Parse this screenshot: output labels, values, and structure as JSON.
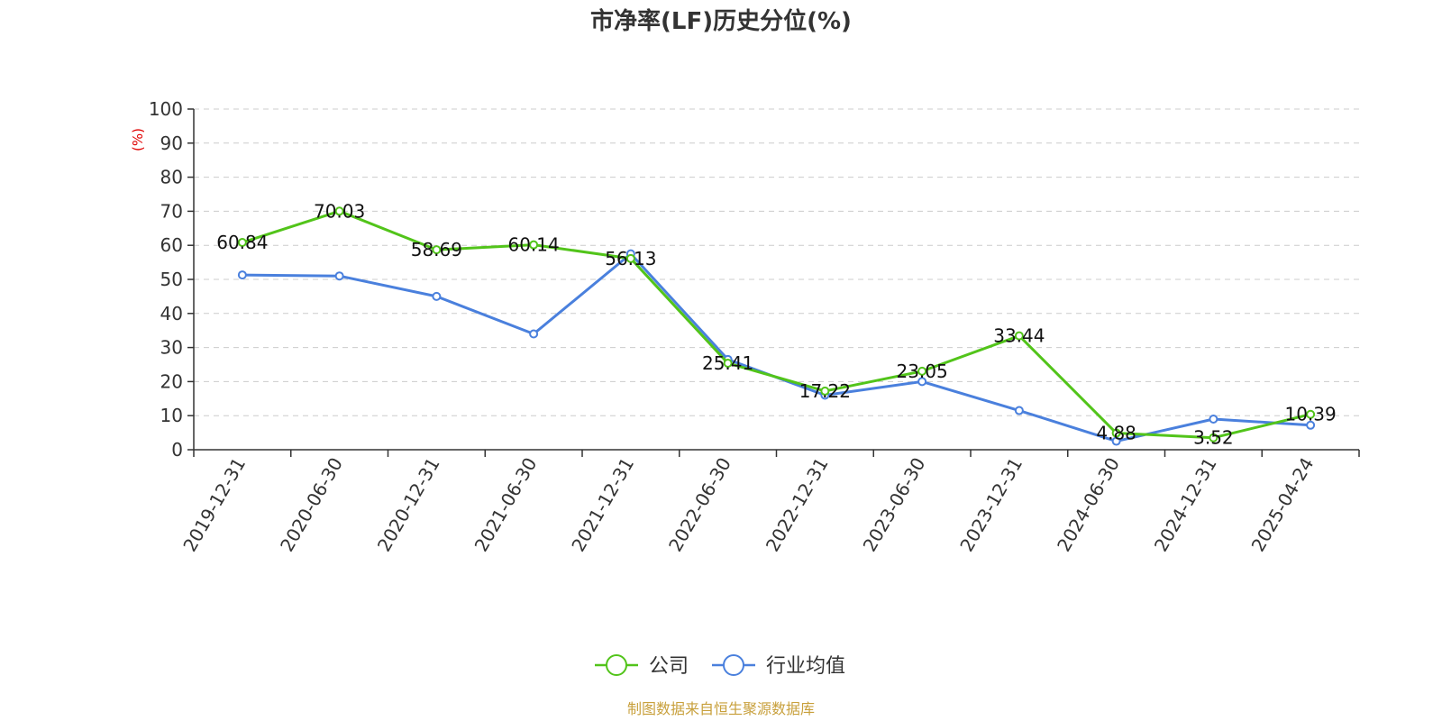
{
  "chart_data": {
    "type": "line",
    "title": "市净率(LF)历史分位(%)",
    "ylabel": "(%)",
    "ylim": [
      0,
      100
    ],
    "yticks": [
      0,
      10,
      20,
      30,
      40,
      50,
      60,
      70,
      80,
      90,
      100
    ],
    "grid": true,
    "legend_position": "bottom",
    "categories": [
      "2019-12-31",
      "2020-06-30",
      "2020-12-31",
      "2021-06-30",
      "2021-12-31",
      "2022-06-30",
      "2022-12-31",
      "2023-06-30",
      "2023-12-31",
      "2024-06-30",
      "2024-12-31",
      "2025-04-24"
    ],
    "series": [
      {
        "name": "公司",
        "color": "#52c41a",
        "values": [
          60.84,
          70.03,
          58.69,
          60.14,
          56.13,
          25.41,
          17.22,
          23.05,
          33.44,
          4.88,
          3.52,
          10.39
        ],
        "data_labels": [
          "60.84",
          "70.03",
          "58.69",
          "60.14",
          "56.13",
          "25.41",
          "17.22",
          "23.05",
          "33.44",
          "4.88",
          "3.52",
          "10.39"
        ]
      },
      {
        "name": "行业均值",
        "color": "#4a80dd",
        "values": [
          51.3,
          51.0,
          45.0,
          34.0,
          57.5,
          26.5,
          16.0,
          20.0,
          11.5,
          2.5,
          9.0,
          7.2
        ]
      }
    ],
    "source": "制图数据来自恒生聚源数据库",
    "source_color": "#c8a03c",
    "ylabel_color": "#e00000"
  }
}
